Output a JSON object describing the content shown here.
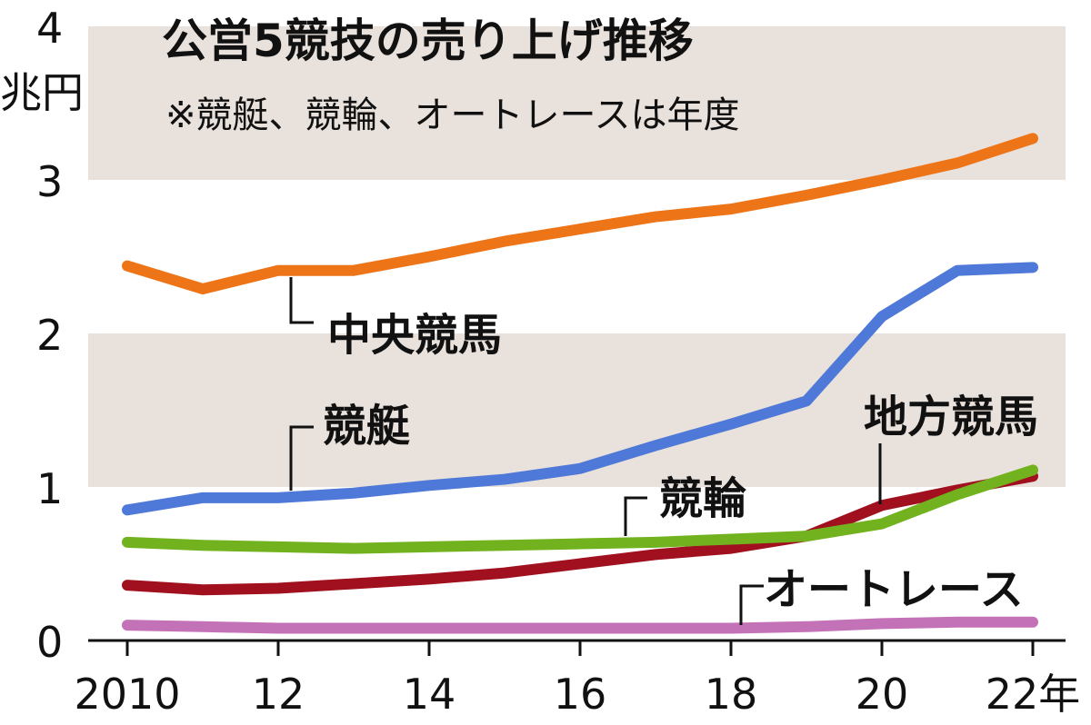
{
  "chart_data": {
    "type": "line",
    "title": "公営5競技の売り上げ推移",
    "subtitle": "※競艇、競輪、オートレースは年度",
    "ylabel": "兆円",
    "xlabel": "",
    "ylim": [
      0,
      4
    ],
    "yticks": [
      0,
      1,
      2,
      3,
      4
    ],
    "x": [
      2010,
      2011,
      2012,
      2013,
      2014,
      2015,
      2016,
      2017,
      2018,
      2019,
      2020,
      2021,
      2022
    ],
    "xtick_values": [
      2010,
      2012,
      2014,
      2016,
      2018,
      2020,
      2022
    ],
    "xtick_labels": [
      "2010",
      "12",
      "14",
      "16",
      "18",
      "20",
      "22年"
    ],
    "grid": "alternating shaded bands",
    "band_color": "#e9e1db",
    "series": [
      {
        "name": "中央競馬",
        "color": "#ee7418",
        "values": [
          2.44,
          2.29,
          2.41,
          2.41,
          2.5,
          2.6,
          2.68,
          2.76,
          2.81,
          2.9,
          3.0,
          3.11,
          3.27
        ]
      },
      {
        "name": "競艇",
        "color": "#4f79d8",
        "values": [
          0.85,
          0.93,
          0.93,
          0.96,
          1.01,
          1.05,
          1.12,
          1.27,
          1.41,
          1.56,
          2.11,
          2.41,
          2.43
        ]
      },
      {
        "name": "競輪",
        "color": "#72b21e",
        "values": [
          0.64,
          0.62,
          0.61,
          0.6,
          0.61,
          0.62,
          0.63,
          0.64,
          0.66,
          0.68,
          0.76,
          0.95,
          1.11
        ]
      },
      {
        "name": "地方競馬",
        "color": "#a0101e",
        "values": [
          0.36,
          0.33,
          0.34,
          0.37,
          0.4,
          0.44,
          0.5,
          0.56,
          0.6,
          0.68,
          0.88,
          0.98,
          1.07
        ]
      },
      {
        "name": "オートレース",
        "color": "#c472b8",
        "values": [
          0.1,
          0.09,
          0.08,
          0.08,
          0.08,
          0.08,
          0.08,
          0.08,
          0.08,
          0.09,
          0.11,
          0.12,
          0.12
        ]
      }
    ]
  }
}
